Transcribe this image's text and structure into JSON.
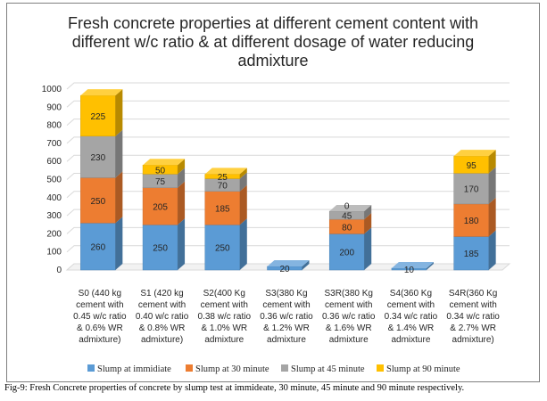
{
  "caption": "Fig-9: Fresh Concrete properties of concrete by slump test at immideate, 30 minute, 45 minute and 90 minute respectively.",
  "chart_data": {
    "type": "bar",
    "stacked": true,
    "style": "3d",
    "title_lines": [
      "Fresh concrete properties at different cement content with",
      "different w/c ratio & at different dosage of water reducing",
      "admixture"
    ],
    "xlabel": "",
    "ylabel": "",
    "ylim": [
      0,
      1000
    ],
    "yticks": [
      0,
      100,
      200,
      300,
      400,
      500,
      600,
      700,
      800,
      900,
      1000
    ],
    "grid": true,
    "legend_position": "bottom",
    "categories": [
      [
        "S0 (440 kg",
        "cement with",
        "0.45 w/c ratio",
        "& 0.6% WR",
        "admixture)"
      ],
      [
        "S1 (420 kg",
        "cement with",
        "0.40 w/c ratio",
        "& 0.8% WR",
        "admixture)"
      ],
      [
        "S2(400 Kg",
        "cement with",
        "0.38 w/c ratio",
        "& 1.0% WR",
        "admixture"
      ],
      [
        "S3(380 Kg",
        "cement with",
        "0.36 w/c ratio",
        "& 1.2% WR",
        "admixture"
      ],
      [
        "S3R(380 Kg",
        "cement with",
        "0.36 w/c ratio",
        "& 1.6% WR",
        "admixture"
      ],
      [
        "S4(360 Kg",
        "cement with",
        "0.34 w/c ratio",
        "& 1.4% WR",
        "admixture"
      ],
      [
        "S4R(360 Kg",
        "cement with",
        "0.34 w/c ratio",
        "& 2.7% WR",
        "admixture)"
      ]
    ],
    "series": [
      {
        "name": "Slump at immidiate",
        "color": "#5b9bd5",
        "values": [
          260,
          250,
          250,
          20,
          200,
          10,
          185
        ]
      },
      {
        "name": "Slump at 30 minute",
        "color": "#ed7d31",
        "values": [
          250,
          205,
          185,
          0,
          80,
          0,
          180
        ]
      },
      {
        "name": "Slump at 45 minute",
        "color": "#a5a5a5",
        "values": [
          230,
          75,
          70,
          0,
          45,
          0,
          170
        ]
      },
      {
        "name": "Slump at 90 minute",
        "color": "#ffc000",
        "values": [
          225,
          50,
          25,
          0,
          0,
          0,
          95
        ]
      }
    ],
    "data_labels": [
      [
        "260",
        "250",
        "230",
        "225"
      ],
      [
        "250",
        "205",
        "75",
        "50"
      ],
      [
        "250",
        "185",
        "70",
        "25"
      ],
      [
        "20",
        "",
        "",
        ""
      ],
      [
        "200",
        "80",
        "45",
        "0"
      ],
      [
        "10",
        "",
        "",
        ""
      ],
      [
        "185",
        "180",
        "170",
        "95"
      ]
    ]
  }
}
